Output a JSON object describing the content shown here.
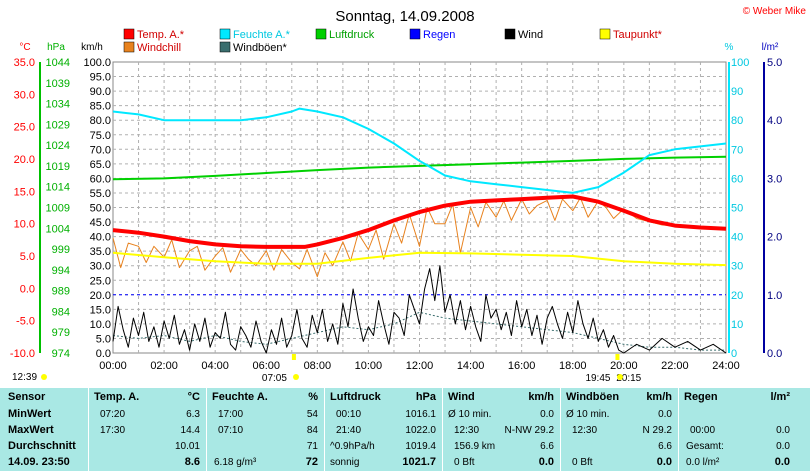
{
  "title": "Sonntag, 14.09.2008",
  "copyright": "© Weber Mike",
  "colors": {
    "temp": "#ff0000",
    "windchill": "#e8821e",
    "humidity": "#00e8ff",
    "gust": "#3a6e6e",
    "pressure": "#00d000",
    "rain": "#0000ff",
    "wind": "#000000",
    "dewpoint": "#ffff00",
    "grid": "#aaaaaa",
    "summary_bg": "#a9e8e4"
  },
  "legend": [
    {
      "label": "Temp. A.*",
      "key": "temp"
    },
    {
      "label": "Feuchte A.*",
      "key": "humidity"
    },
    {
      "label": "Luftdruck",
      "key": "pressure"
    },
    {
      "label": "Regen",
      "key": "rain"
    },
    {
      "label": "Wind",
      "key": "wind"
    },
    {
      "label": "Taupunkt*",
      "key": "dewpoint"
    },
    {
      "label": "Windchill",
      "key": "windchill"
    },
    {
      "label": "Windböen*",
      "key": "gust"
    }
  ],
  "axis_units": {
    "temp": "°C",
    "pressure": "hPa",
    "wind": "km/h",
    "humidity": "%",
    "rain": "l/m²"
  },
  "chart_data": {
    "type": "line",
    "title": "Sonntag, 14.09.2008",
    "x_ticks": [
      "00:00",
      "02:00",
      "04:00",
      "06:00",
      "08:00",
      "10:00",
      "12:00",
      "14:00",
      "16:00",
      "18:00",
      "20:00",
      "22:00",
      "24:00"
    ],
    "x_range_hours": [
      0,
      24
    ],
    "axes": {
      "temp": {
        "min": -10,
        "max": 35,
        "ticks": [
          "35.0",
          "30.0",
          "25.0",
          "20.0",
          "15.0",
          "10.0",
          "5.0",
          "0.0",
          "-5.0",
          "-10.0"
        ]
      },
      "pressure": {
        "min": 974,
        "max": 1044,
        "ticks": [
          "1044",
          "1039",
          "1034",
          "1029",
          "1024",
          "1019",
          "1014",
          "1009",
          "1004",
          "999",
          "994",
          "989",
          "984",
          "979",
          "974"
        ]
      },
      "wind": {
        "min": 0,
        "max": 100,
        "ticks": [
          "100.0",
          "95.0",
          "90.0",
          "85.0",
          "80.0",
          "75.0",
          "70.0",
          "65.0",
          "60.0",
          "55.0",
          "50.0",
          "45.0",
          "40.0",
          "35.0",
          "30.0",
          "25.0",
          "20.0",
          "15.0",
          "10.0",
          "5.0",
          "0.0"
        ]
      },
      "humidity": {
        "min": 0,
        "max": 100,
        "ticks": [
          "100",
          "90",
          "80",
          "70",
          "60",
          "50",
          "40",
          "30",
          "20",
          "10",
          "0"
        ]
      },
      "rain": {
        "min": 0,
        "max": 5,
        "ticks": [
          "5.0",
          "4.0",
          "3.0",
          "2.0",
          "1.0",
          "0.0"
        ]
      }
    },
    "series": [
      {
        "name": "Temp. A.*",
        "key": "temp",
        "axis": "temp",
        "width": 4,
        "x": [
          0,
          1,
          2,
          3,
          4,
          5,
          6,
          7,
          7.5,
          8,
          9,
          10,
          11,
          12,
          13,
          14,
          15,
          16,
          17,
          18,
          19,
          20,
          21,
          22,
          23,
          24
        ],
        "y": [
          9.0,
          8.6,
          8.0,
          7.3,
          6.8,
          6.5,
          6.4,
          6.4,
          6.4,
          6.8,
          7.8,
          9.0,
          10.5,
          11.8,
          12.8,
          13.4,
          13.6,
          13.8,
          14.0,
          14.2,
          13.4,
          12.0,
          10.5,
          9.7,
          9.4,
          9.2
        ]
      },
      {
        "name": "Feuchte A.*",
        "key": "humidity",
        "axis": "humidity",
        "width": 2,
        "x": [
          0,
          1,
          2,
          3,
          4,
          5,
          6,
          7,
          7.3,
          8,
          9,
          10,
          11,
          12,
          13,
          14,
          15,
          16,
          17,
          18,
          19,
          20,
          21,
          22,
          23,
          24
        ],
        "y": [
          83,
          82,
          80,
          80,
          80,
          80,
          81,
          83,
          84,
          83,
          81,
          77,
          72,
          66,
          61,
          59,
          58,
          57,
          56,
          55,
          57,
          62,
          68,
          70,
          71,
          72
        ]
      },
      {
        "name": "Luftdruck",
        "key": "pressure",
        "axis": "pressure",
        "width": 2,
        "x": [
          0,
          2,
          4,
          6,
          8,
          10,
          12,
          14,
          16,
          18,
          20,
          22,
          24
        ],
        "y": [
          1015.8,
          1016.0,
          1016.6,
          1017.3,
          1018.0,
          1018.6,
          1019.0,
          1019.4,
          1019.8,
          1020.2,
          1020.7,
          1021.0,
          1021.2
        ]
      },
      {
        "name": "Taupunkt*",
        "key": "dewpoint",
        "axis": "temp",
        "width": 2,
        "x": [
          0,
          2,
          4,
          6,
          8,
          10,
          12,
          14,
          16,
          18,
          20,
          22,
          24
        ],
        "y": [
          5.5,
          4.8,
          4.2,
          3.8,
          3.8,
          4.7,
          5.5,
          5.4,
          5.2,
          5.0,
          4.2,
          3.8,
          3.6
        ]
      },
      {
        "name": "Windchill",
        "key": "windchill",
        "axis": "temp",
        "width": 1,
        "x": [
          0,
          0.3,
          0.6,
          1,
          1.3,
          1.6,
          2,
          2.3,
          2.6,
          3,
          3.3,
          3.6,
          4,
          4.3,
          4.6,
          5,
          5.3,
          5.6,
          6,
          6.3,
          6.6,
          7,
          7.3,
          7.6,
          8,
          8.3,
          8.6,
          9,
          9.3,
          9.6,
          10,
          10.3,
          10.6,
          11,
          11.3,
          11.6,
          12,
          12.3,
          12.6,
          13,
          13.3,
          13.6,
          14,
          14.3,
          14.6,
          15,
          15.3,
          15.6,
          16,
          16.3,
          16.6,
          17,
          17.3,
          17.6,
          18,
          18.3,
          18.6,
          19,
          19.3,
          19.6,
          20,
          20.5,
          21,
          21.5,
          22,
          23,
          24
        ],
        "y": [
          7.8,
          3.2,
          7.0,
          6.5,
          4.0,
          6.5,
          4.8,
          7.5,
          3.2,
          5.8,
          6.5,
          2.8,
          5.0,
          6.3,
          2.5,
          6.0,
          4.5,
          3.5,
          5.8,
          2.8,
          6.0,
          4.0,
          3.0,
          6.0,
          1.8,
          5.5,
          3.5,
          7.2,
          4.2,
          8.5,
          6.0,
          9.0,
          4.5,
          10.0,
          7.0,
          11.5,
          6.5,
          12.5,
          10.0,
          10.0,
          13.0,
          5.5,
          12.5,
          9.5,
          13.3,
          11.0,
          13.5,
          10.5,
          13.8,
          11.5,
          12.8,
          13.6,
          10.5,
          13.8,
          12.0,
          14.0,
          11.0,
          13.5,
          12.5,
          10.8,
          12.3,
          10.8,
          10.3,
          9.8,
          9.7,
          9.4,
          9.2
        ]
      },
      {
        "name": "Wind",
        "key": "wind",
        "axis": "wind",
        "width": 1,
        "x": [
          0,
          0.2,
          0.4,
          0.6,
          0.8,
          1.0,
          1.2,
          1.4,
          1.6,
          1.8,
          2.0,
          2.2,
          2.4,
          2.6,
          2.8,
          3.0,
          3.2,
          3.4,
          3.6,
          3.8,
          4.0,
          4.2,
          4.4,
          4.6,
          4.8,
          5.0,
          5.2,
          5.4,
          5.6,
          5.8,
          6.0,
          6.2,
          6.4,
          6.6,
          6.8,
          7.0,
          7.2,
          7.4,
          7.6,
          7.8,
          8.0,
          8.2,
          8.4,
          8.6,
          8.8,
          9.0,
          9.2,
          9.4,
          9.6,
          9.8,
          10.0,
          10.2,
          10.4,
          10.6,
          10.8,
          11.0,
          11.2,
          11.4,
          11.6,
          11.8,
          12.0,
          12.2,
          12.4,
          12.6,
          12.8,
          13.0,
          13.2,
          13.4,
          13.6,
          13.8,
          14.0,
          14.2,
          14.4,
          14.6,
          14.8,
          15.0,
          15.2,
          15.4,
          15.6,
          15.8,
          16.0,
          16.2,
          16.4,
          16.6,
          16.8,
          17.0,
          17.2,
          17.4,
          17.6,
          17.8,
          18.0,
          18.2,
          18.4,
          18.6,
          18.8,
          19.0,
          19.2,
          19.4,
          19.6,
          19.8,
          20.0,
          20.5,
          21.0,
          21.5,
          22.0,
          22.5,
          23.0,
          23.5,
          24.0
        ],
        "y": [
          4,
          16,
          8,
          2,
          12,
          6,
          14,
          4,
          9,
          2,
          11,
          5,
          13,
          3,
          8,
          1,
          10,
          4,
          12,
          2,
          7,
          5,
          14,
          3,
          1,
          9,
          6,
          2,
          11,
          4,
          0,
          8,
          3,
          12,
          2,
          6,
          15,
          5,
          2,
          13,
          7,
          15,
          4,
          10,
          3,
          17,
          9,
          22,
          12,
          4,
          9,
          6,
          18,
          10,
          3,
          14,
          12,
          6,
          20,
          15,
          10,
          22,
          29,
          18,
          30,
          14,
          20,
          10,
          18,
          8,
          16,
          9,
          4,
          20,
          12,
          15,
          8,
          14,
          6,
          18,
          9,
          15,
          6,
          13,
          3,
          12,
          16,
          10,
          5,
          14,
          7,
          18,
          10,
          5,
          12,
          4,
          8,
          2,
          6,
          1,
          0,
          3,
          1,
          5,
          2,
          4,
          1,
          3,
          0
        ]
      },
      {
        "name": "Windböen*",
        "key": "gust",
        "axis": "wind",
        "width": 1,
        "dashed": true,
        "x": [
          0,
          1,
          2,
          3,
          4,
          5,
          6,
          7,
          8,
          9,
          10,
          11,
          12,
          13,
          14,
          15,
          16,
          17,
          18,
          19,
          20,
          21,
          22,
          23,
          24
        ],
        "y": [
          6,
          5,
          6,
          4,
          6,
          4,
          3,
          5,
          7,
          9,
          8,
          10,
          14,
          12,
          11,
          10,
          9,
          8,
          7,
          5,
          3,
          2,
          2,
          1,
          1
        ]
      }
    ],
    "rain_series": {
      "name": "Regen",
      "values_mm": [
        0.0
      ]
    },
    "reference_line_rain": 1.0,
    "bottom_labels": [
      {
        "text": "12:39",
        "hour": 0
      },
      {
        "text": "07:05",
        "hour": 7.083
      },
      {
        "text": "19:45",
        "hour": 19.75
      },
      {
        "text": "20:15",
        "hour": 20.25
      }
    ],
    "markers": [
      {
        "hour": 7.083,
        "color": "#ffff00"
      },
      {
        "hour": 19.75,
        "color": "#ffff00"
      }
    ]
  },
  "summary": {
    "sensor": {
      "header": "Sensor",
      "rows": [
        "MinWert",
        "MaxWert",
        "Durchschnitt",
        "14.09. 23:50"
      ]
    },
    "temp": {
      "header": "Temp. A.",
      "unit": "°C",
      "rows": [
        {
          "time": "07:20",
          "val": "6.3"
        },
        {
          "time": "17:30",
          "val": "14.4"
        },
        {
          "time": "",
          "val": "10.01"
        },
        {
          "time": "",
          "val": "8.6"
        }
      ]
    },
    "humidity": {
      "header": "Feuchte A.",
      "unit": "%",
      "rows": [
        {
          "time": "17:00",
          "val": "54"
        },
        {
          "time": "07:10",
          "val": "84"
        },
        {
          "time": "",
          "val": "71"
        },
        {
          "time": "6.18 g/m³",
          "val": "72"
        }
      ]
    },
    "pressure": {
      "header": "Luftdruck",
      "unit": "hPa",
      "rows": [
        {
          "time": "00:10",
          "val": "1016.1"
        },
        {
          "time": "21:40",
          "val": "1022.0"
        },
        {
          "time": "^0.9hPa/h",
          "val": "1019.4"
        },
        {
          "time": "sonnig",
          "val": "1021.7"
        }
      ]
    },
    "wind": {
      "header": "Wind",
      "unit": "km/h",
      "rows": [
        {
          "time": "Ø 10 min.",
          "mid": "",
          "val": "0.0"
        },
        {
          "time": "12:30",
          "mid": "N-NW 29.2",
          "val": ""
        },
        {
          "time": "156.9 km",
          "mid": "",
          "val": "6.6"
        },
        {
          "time": "0 Bft",
          "mid": "",
          "val": "0.0"
        }
      ]
    },
    "gust": {
      "header": "Windböen",
      "unit": "km/h",
      "rows": [
        {
          "time": "Ø 10 min.",
          "mid": "",
          "val": "0.0"
        },
        {
          "time": "12:30",
          "mid": "N 29.2",
          "val": ""
        },
        {
          "time": "",
          "mid": "",
          "val": "6.6"
        },
        {
          "time": "0 Bft",
          "mid": "",
          "val": "0.0"
        }
      ]
    },
    "rain": {
      "header": "Regen",
      "unit": "l/m²",
      "rows": [
        {
          "time": "",
          "val": ""
        },
        {
          "time": "00:00",
          "val": "0.0"
        },
        {
          "time": "Gesamt:",
          "val": "0.0"
        },
        {
          "time": "0.0 l/m²",
          "val": "0.0"
        }
      ]
    }
  }
}
